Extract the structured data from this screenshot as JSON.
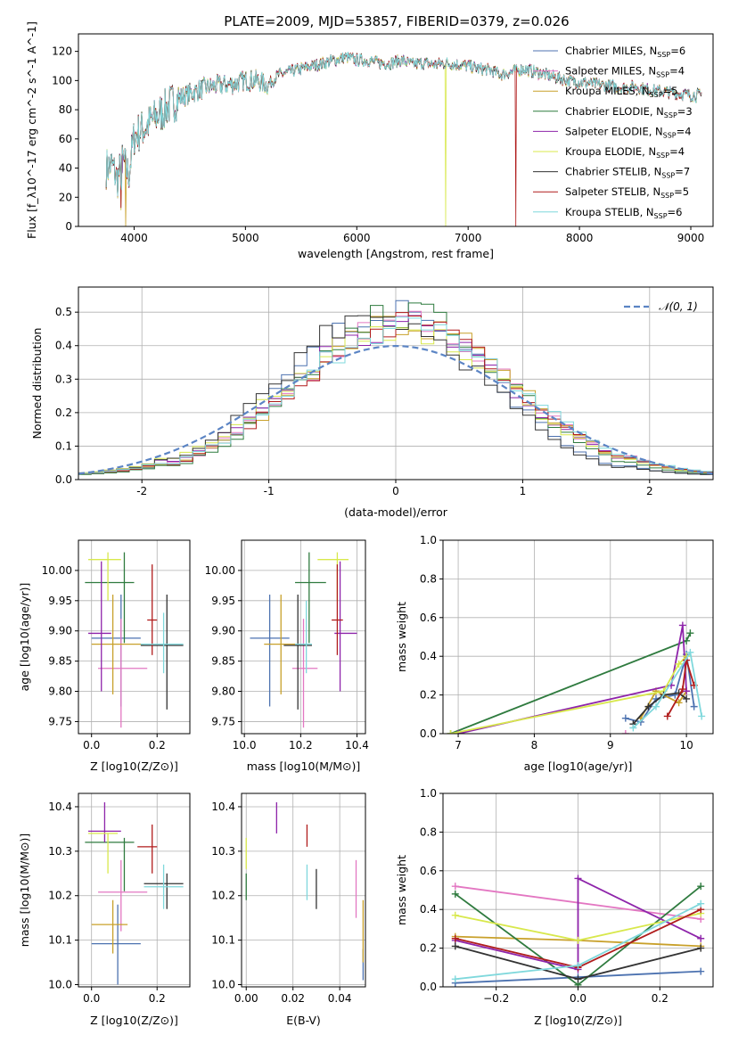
{
  "title": "PLATE=2009, MJD=53857, FIBERID=0379, z=0.026",
  "colors": [
    "#4c72b0",
    "#e377c2",
    "#c8a02a",
    "#2f7b3f",
    "#8e24aa",
    "#d8e84c",
    "#333333",
    "#b01c1c",
    "#7fd8dc"
  ],
  "legend_top": [
    {
      "name": "Chabrier MILES",
      "n": "6"
    },
    {
      "name": "Salpeter MILES",
      "n": "4"
    },
    {
      "name": "Kroupa MILES",
      "n": "5"
    },
    {
      "name": "Chabrier ELODIE",
      "n": "3"
    },
    {
      "name": "Salpeter ELODIE",
      "n": "4"
    },
    {
      "name": "Kroupa ELODIE",
      "n": "4"
    },
    {
      "name": "Chabrier STELIB",
      "n": "7"
    },
    {
      "name": "Salpeter STELIB",
      "n": "5"
    },
    {
      "name": "Kroupa STELIB",
      "n": "6"
    }
  ],
  "legend_hist": "𝒩(0, 1)",
  "chart_data": [
    {
      "type": "line",
      "name": "spectrum",
      "xlabel": "wavelength [Angstrom, rest frame]",
      "ylabel": "Flux [f_λ10^-17 erg cm^-2 s^-1 A^-1]",
      "xlim": [
        3500,
        9200
      ],
      "ylim": [
        0,
        132
      ],
      "xticks": [
        4000,
        5000,
        6000,
        7000,
        8000,
        9000
      ],
      "yticks": [
        0,
        20,
        40,
        60,
        80,
        100,
        120
      ],
      "envelope": [
        [
          3750,
          40
        ],
        [
          3800,
          42
        ],
        [
          3850,
          32
        ],
        [
          3900,
          45
        ],
        [
          3950,
          35
        ],
        [
          4000,
          62
        ],
        [
          4100,
          68
        ],
        [
          4200,
          75
        ],
        [
          4300,
          82
        ],
        [
          4400,
          88
        ],
        [
          4500,
          91
        ],
        [
          4600,
          94
        ],
        [
          4700,
          96
        ],
        [
          4800,
          97
        ],
        [
          4900,
          98
        ],
        [
          5000,
          100
        ],
        [
          5100,
          100
        ],
        [
          5200,
          97
        ],
        [
          5300,
          104
        ],
        [
          5400,
          106
        ],
        [
          5500,
          108
        ],
        [
          5600,
          110
        ],
        [
          5700,
          112
        ],
        [
          5800,
          114
        ],
        [
          5900,
          116
        ],
        [
          6000,
          114
        ],
        [
          6100,
          114
        ],
        [
          6200,
          112
        ],
        [
          6300,
          112
        ],
        [
          6400,
          114
        ],
        [
          6500,
          111
        ],
        [
          6600,
          112
        ],
        [
          6700,
          111
        ],
        [
          6800,
          112
        ],
        [
          6900,
          111
        ],
        [
          7000,
          110
        ],
        [
          7100,
          108
        ],
        [
          7200,
          107
        ],
        [
          7300,
          104
        ],
        [
          7400,
          106
        ],
        [
          7500,
          108
        ],
        [
          7600,
          106
        ],
        [
          7700,
          104
        ],
        [
          7800,
          102
        ],
        [
          7900,
          100
        ],
        [
          8000,
          99
        ],
        [
          8100,
          98
        ],
        [
          8200,
          97
        ],
        [
          8300,
          96
        ],
        [
          8400,
          95
        ],
        [
          8500,
          96
        ],
        [
          8600,
          94
        ],
        [
          8700,
          93
        ],
        [
          8800,
          92
        ],
        [
          8900,
          91
        ],
        [
          9000,
          90
        ],
        [
          9100,
          90
        ]
      ],
      "dips": [
        {
          "x": 3925,
          "series": 2
        },
        {
          "x": 6800,
          "series": 5
        },
        {
          "x": 7430,
          "series": 7
        }
      ]
    },
    {
      "type": "bar",
      "name": "residual histograms",
      "xlabel": "(data-model)/error",
      "ylabel": "Normed distribution",
      "xlim": [
        -2.5,
        2.5
      ],
      "ylim": [
        0,
        0.575
      ],
      "xticks": [
        -2,
        -1,
        0,
        1,
        2
      ],
      "yticks": [
        0.0,
        0.1,
        0.2,
        0.3,
        0.4,
        0.5
      ],
      "bin_width": 0.1,
      "normal": {
        "mu": 0,
        "sigma": 1
      }
    },
    {
      "type": "scatter",
      "name": "age vs Z",
      "xlabel": "Z [log10(Z/Z⊙)]",
      "ylabel": "age  [log10(age/yr)]",
      "xlim": [
        -0.04,
        0.3
      ],
      "ylim": [
        9.73,
        10.05
      ],
      "xticks": [
        0.0,
        0.2
      ],
      "yticks": [
        9.75,
        9.8,
        9.85,
        9.9,
        9.95,
        10.0
      ],
      "points": [
        {
          "x": 0.09,
          "y": 9.888,
          "xe": [
            0.0,
            0.15
          ],
          "ye": [
            9.775,
            9.96
          ]
        },
        {
          "x": 0.09,
          "y": 9.838,
          "xe": [
            0.02,
            0.17
          ],
          "ye": [
            9.74,
            9.92
          ]
        },
        {
          "x": 0.065,
          "y": 9.878,
          "xe": [
            0.0,
            0.16
          ],
          "ye": [
            9.795,
            9.96
          ]
        },
        {
          "x": 0.1,
          "y": 9.98,
          "xe": [
            -0.02,
            0.13
          ],
          "ye": [
            9.88,
            10.03
          ]
        },
        {
          "x": 0.03,
          "y": 9.896,
          "xe": [
            -0.01,
            0.06
          ],
          "ye": [
            9.8,
            10.015
          ]
        },
        {
          "x": 0.05,
          "y": 10.018,
          "xe": [
            -0.01,
            0.09
          ],
          "ye": [
            9.95,
            10.03
          ]
        },
        {
          "x": 0.23,
          "y": 9.876,
          "xe": [
            0.15,
            0.28
          ],
          "ye": [
            9.77,
            9.96
          ]
        },
        {
          "x": 0.185,
          "y": 9.918,
          "xe": [
            0.17,
            0.2
          ],
          "ye": [
            9.86,
            10.01
          ]
        },
        {
          "x": 0.22,
          "y": 9.878,
          "xe": [
            0.15,
            0.28
          ],
          "ye": [
            9.83,
            9.93
          ]
        }
      ]
    },
    {
      "type": "scatter",
      "name": "age vs mass",
      "xlabel": "mass [log10(M/M⊙)]",
      "ylabel": "",
      "xlim": [
        9.99,
        10.43
      ],
      "ylim": [
        9.73,
        10.05
      ],
      "xticks": [
        10.0,
        10.2,
        10.4
      ],
      "yticks": [
        9.75,
        9.8,
        9.85,
        9.9,
        9.95,
        10.0
      ],
      "points": [
        {
          "x": 10.09,
          "y": 9.888,
          "xe": [
            10.02,
            10.16
          ],
          "ye": [
            9.775,
            9.96
          ]
        },
        {
          "x": 10.21,
          "y": 9.838,
          "xe": [
            10.17,
            10.26
          ],
          "ye": [
            9.74,
            9.92
          ]
        },
        {
          "x": 10.13,
          "y": 9.878,
          "xe": [
            10.07,
            10.19
          ],
          "ye": [
            9.795,
            9.96
          ]
        },
        {
          "x": 10.23,
          "y": 9.98,
          "xe": [
            10.18,
            10.29
          ],
          "ye": [
            9.88,
            10.03
          ]
        },
        {
          "x": 10.34,
          "y": 9.896,
          "xe": [
            10.32,
            10.4
          ],
          "ye": [
            9.8,
            10.015
          ]
        },
        {
          "x": 10.33,
          "y": 10.018,
          "xe": [
            10.26,
            10.37
          ],
          "ye": [
            9.95,
            10.03
          ]
        },
        {
          "x": 10.19,
          "y": 9.876,
          "xe": [
            10.14,
            10.24
          ],
          "ye": [
            9.77,
            9.96
          ]
        },
        {
          "x": 10.33,
          "y": 9.918,
          "xe": [
            10.31,
            10.35
          ],
          "ye": [
            9.86,
            10.01
          ]
        },
        {
          "x": 10.22,
          "y": 9.878,
          "xe": [
            10.18,
            10.24
          ],
          "ye": [
            9.83,
            9.95
          ]
        }
      ]
    },
    {
      "type": "line",
      "name": "mass weight vs age",
      "xlabel": "age  [log10(age/yr)]",
      "ylabel": "mass weight",
      "xlim": [
        6.8,
        10.35
      ],
      "ylim": [
        0,
        1.0
      ],
      "xticks": [
        7,
        8,
        9,
        10
      ],
      "yticks": [
        0.0,
        0.2,
        0.4,
        0.6,
        0.8,
        1.0
      ],
      "series": [
        {
          "x": [
            9.2,
            9.4,
            9.6,
            9.85,
            10.0,
            10.1
          ],
          "y": [
            0.08,
            0.06,
            0.18,
            0.2,
            0.41,
            0.14
          ]
        },
        {
          "x": 9.2,
          "y": 0
        },
        {
          "x": [
            9.4,
            9.6,
            9.9,
            10.0
          ],
          "y": [
            0.08,
            0.22,
            0.16,
            0.22
          ]
        },
        {
          "x": [
            6.9,
            10.0,
            10.05
          ],
          "y": [
            0.0,
            0.48,
            0.52
          ]
        },
        {
          "x": [
            7.0,
            9.8,
            9.95,
            10.0
          ],
          "y": [
            0.0,
            0.25,
            0.56,
            0.22
          ]
        },
        {
          "x": [
            6.9,
            9.7,
            9.9,
            10.0
          ],
          "y": [
            0.0,
            0.22,
            0.36,
            0.4
          ]
        },
        {
          "x": [
            9.3,
            9.5,
            9.7,
            9.9,
            10.0
          ],
          "y": [
            0.05,
            0.14,
            0.2,
            0.21,
            0.18
          ]
        },
        {
          "x": [
            9.75,
            9.95,
            10.0,
            10.1
          ],
          "y": [
            0.09,
            0.23,
            0.38,
            0.25
          ]
        },
        {
          "x": [
            9.3,
            9.6,
            10.05,
            10.2
          ],
          "y": [
            0.03,
            0.14,
            0.42,
            0.09
          ]
        }
      ]
    },
    {
      "type": "scatter",
      "name": "mass vs Z",
      "xlabel": "Z [log10(Z/Z⊙)]",
      "ylabel": "mass [log10(M/M⊙)]",
      "xlim": [
        -0.04,
        0.3
      ],
      "ylim": [
        9.995,
        10.43
      ],
      "xticks": [
        0.0,
        0.2
      ],
      "yticks": [
        10.0,
        10.1,
        10.2,
        10.3,
        10.4
      ],
      "points": [
        {
          "x": 0.08,
          "y": 10.092,
          "xe": [
            0.0,
            0.15
          ],
          "ye": [
            10.0,
            10.18
          ]
        },
        {
          "x": 0.09,
          "y": 10.208,
          "xe": [
            0.02,
            0.17
          ],
          "ye": [
            10.12,
            10.28
          ]
        },
        {
          "x": 0.065,
          "y": 10.135,
          "xe": [
            0.0,
            0.11
          ],
          "ye": [
            10.07,
            10.19
          ]
        },
        {
          "x": 0.1,
          "y": 10.32,
          "xe": [
            -0.02,
            0.13
          ],
          "ye": [
            10.21,
            10.33
          ]
        },
        {
          "x": 0.04,
          "y": 10.345,
          "xe": [
            -0.01,
            0.09
          ],
          "ye": [
            10.32,
            10.41
          ]
        },
        {
          "x": 0.05,
          "y": 10.34,
          "xe": [
            -0.01,
            0.08
          ],
          "ye": [
            10.25,
            10.34
          ]
        },
        {
          "x": 0.23,
          "y": 10.227,
          "xe": [
            0.16,
            0.28
          ],
          "ye": [
            10.17,
            10.25
          ]
        },
        {
          "x": 0.185,
          "y": 10.31,
          "xe": [
            0.14,
            0.2
          ],
          "ye": [
            10.25,
            10.36
          ]
        },
        {
          "x": 0.22,
          "y": 10.22,
          "xe": [
            0.16,
            0.28
          ],
          "ye": [
            10.17,
            10.27
          ]
        }
      ]
    },
    {
      "type": "scatter",
      "name": "mass vs E(B-V)",
      "xlabel": "E(B-V)",
      "ylabel": "",
      "xlim": [
        -0.002,
        0.051
      ],
      "ylim": [
        9.995,
        10.43
      ],
      "xticks": [
        0.0,
        0.02,
        0.04
      ],
      "yticks": [
        10.0,
        10.1,
        10.2,
        10.3,
        10.4
      ],
      "vlines": [
        {
          "x": 0.05,
          "y": [
            10.01,
            10.08
          ]
        },
        {
          "x": 0.047,
          "y": [
            10.15,
            10.28
          ]
        },
        {
          "x": 0.05,
          "y": [
            10.05,
            10.19
          ]
        },
        {
          "x": 0.0,
          "y": [
            10.19,
            10.25
          ]
        },
        {
          "x": 0.013,
          "y": [
            10.34,
            10.41
          ]
        },
        {
          "x": 0.0,
          "y": [
            10.26,
            10.33
          ]
        },
        {
          "x": 0.03,
          "y": [
            10.17,
            10.26
          ]
        },
        {
          "x": 0.026,
          "y": [
            10.31,
            10.36
          ]
        },
        {
          "x": 0.026,
          "y": [
            10.19,
            10.27
          ]
        }
      ]
    },
    {
      "type": "line",
      "name": "mass weight vs Z",
      "xlabel": "Z [log10(Z/Z⊙)]",
      "ylabel": "mass weight",
      "xlim": [
        -0.33,
        0.33
      ],
      "ylim": [
        0,
        1.0
      ],
      "xticks": [
        -0.2,
        0.0,
        0.2
      ],
      "yticks": [
        0.0,
        0.2,
        0.4,
        0.6,
        0.8,
        1.0
      ],
      "series": [
        {
          "x": [
            -0.3,
            0.0,
            0.3
          ],
          "y": [
            0.02,
            0.05,
            0.08
          ]
        },
        {
          "x": [
            -0.3,
            0.3
          ],
          "y": [
            0.52,
            0.35
          ]
        },
        {
          "x": [
            -0.3,
            0.0,
            0.3
          ],
          "y": [
            0.26,
            0.24,
            0.21
          ]
        },
        {
          "x": [
            -0.3,
            0.0,
            0.3
          ],
          "y": [
            0.48,
            0.01,
            0.52
          ]
        },
        {
          "x": [
            -0.3,
            0.0,
            0.0,
            0.3
          ],
          "y": [
            0.24,
            0.09,
            0.56,
            0.25
          ]
        },
        {
          "x": [
            -0.3,
            0.0,
            0.3
          ],
          "y": [
            0.37,
            0.24,
            0.38
          ]
        },
        {
          "x": [
            -0.3,
            0.0,
            0.3
          ],
          "y": [
            0.21,
            0.04,
            0.2
          ]
        },
        {
          "x": [
            -0.3,
            0.0,
            0.3
          ],
          "y": [
            0.25,
            0.1,
            0.4
          ]
        },
        {
          "x": [
            -0.3,
            0.0,
            0.3
          ],
          "y": [
            0.04,
            0.11,
            0.43
          ]
        }
      ]
    }
  ]
}
